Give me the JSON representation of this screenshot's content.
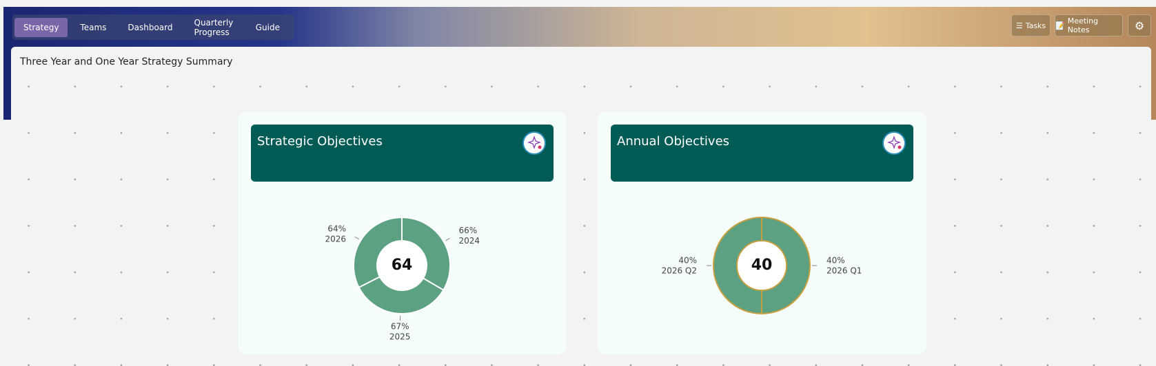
{
  "nav": {
    "tabs": [
      "Strategy",
      "Teams",
      "Dashboard",
      "Quarterly Progress",
      "Guide"
    ],
    "active": 0
  },
  "toolbar": {
    "tasks": "Tasks",
    "meeting_notes": "Meeting Notes"
  },
  "page_title": "Three Year and One Year Strategy Summary",
  "chart_data": [
    {
      "type": "donut",
      "title": "Strategic Objectives",
      "center_value": 64,
      "categories": [
        "2024",
        "2025",
        "2026"
      ],
      "values": [
        66,
        67,
        64
      ],
      "value_labels": [
        "66%",
        "67%",
        "64%"
      ],
      "color": "#5ba182",
      "border_color": "#ffffff"
    },
    {
      "type": "donut",
      "title": "Annual Objectives",
      "center_value": 40,
      "categories": [
        "2026 Q1",
        "2026 Q2"
      ],
      "values": [
        40,
        40
      ],
      "value_labels": [
        "40%",
        "40%"
      ],
      "color": "#5ba182",
      "border_color": "#c9a040"
    }
  ]
}
